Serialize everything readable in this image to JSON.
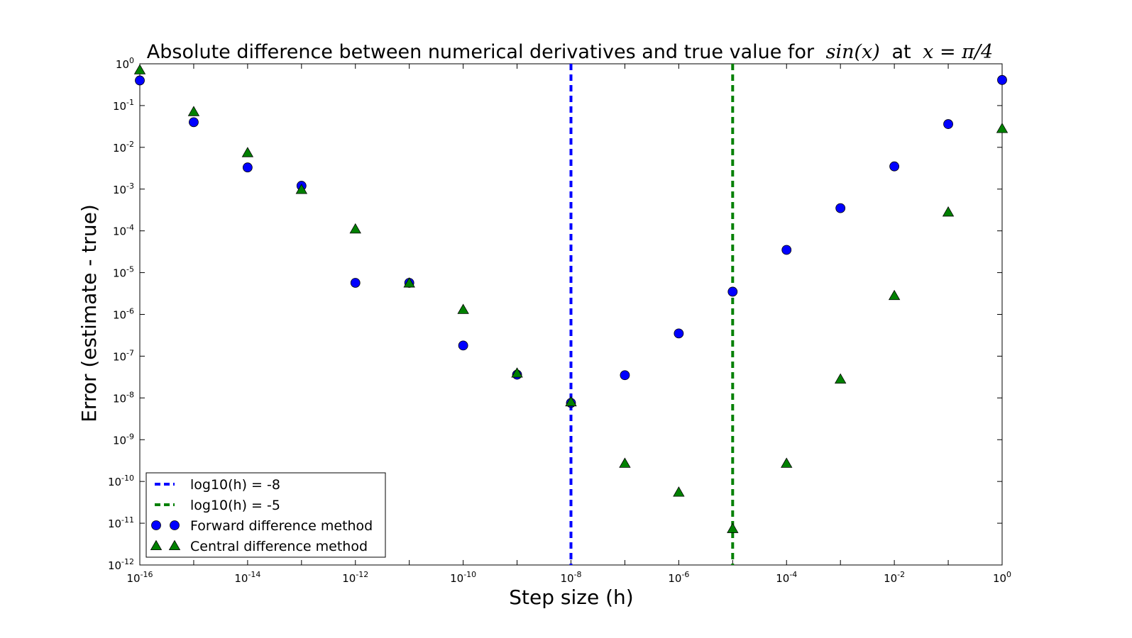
{
  "chart_data": {
    "type": "scatter",
    "title": "Absolute difference between numerical derivatives and true value for",
    "title_math_1": "sin(x)",
    "title_mid": "at",
    "title_math_2": "x = π/4",
    "xlabel": "Step size (h)",
    "ylabel": "Error (estimate - true)",
    "xscale": "log",
    "yscale": "log",
    "xlim": [
      1e-16,
      1
    ],
    "ylim": [
      1e-12,
      1
    ],
    "x_tick_exponents": [
      "-16",
      "-14",
      "-12",
      "-10",
      "-8",
      "-6",
      "-4",
      "-2",
      "0"
    ],
    "y_tick_exponents": [
      "0",
      "-1",
      "-2",
      "-3",
      "-4",
      "-5",
      "-6",
      "-7",
      "-8",
      "-9",
      "-10",
      "-11",
      "-12"
    ],
    "tick_base": "10",
    "grid": false,
    "legend_position": "lower-left",
    "vertical_lines": [
      {
        "name": "log10(h) = -8",
        "x": 1e-08,
        "color": "#0000ff",
        "style": "dashed"
      },
      {
        "name": "log10(h) = -5",
        "x": 1e-05,
        "color": "#008000",
        "style": "dashed"
      }
    ],
    "series": [
      {
        "name": "Forward difference method",
        "marker": "circle",
        "color": "#0000ff",
        "x": [
          1e-16,
          1e-15,
          1e-14,
          1e-13,
          1e-12,
          1e-11,
          1e-10,
          1e-09,
          1e-08,
          1e-07,
          1e-06,
          1e-05,
          0.0001,
          0.001,
          0.01,
          0.1,
          1
        ],
        "y": [
          0.4,
          0.04,
          0.0033,
          0.0012,
          5.7e-06,
          5.7e-06,
          1.8e-07,
          3.6e-08,
          7.6e-09,
          3.5e-08,
          3.5e-07,
          3.5e-06,
          3.5e-05,
          0.00035,
          0.0035,
          0.036,
          0.41
        ]
      },
      {
        "name": "Central difference method",
        "marker": "triangle",
        "color": "#008000",
        "x": [
          1e-16,
          1e-15,
          1e-14,
          1e-13,
          1e-12,
          1e-11,
          1e-10,
          1e-09,
          1e-08,
          1e-07,
          1e-06,
          1e-05,
          0.0001,
          0.001,
          0.01,
          0.1,
          1
        ],
        "y": [
          0.71,
          0.071,
          0.0074,
          0.00097,
          0.00011,
          5.6e-06,
          1.3e-06,
          3.9e-08,
          8e-09,
          2.7e-10,
          5.5e-11,
          7.4e-12,
          2.7e-10,
          2.8e-08,
          2.8e-06,
          0.00028,
          0.028
        ]
      }
    ]
  }
}
